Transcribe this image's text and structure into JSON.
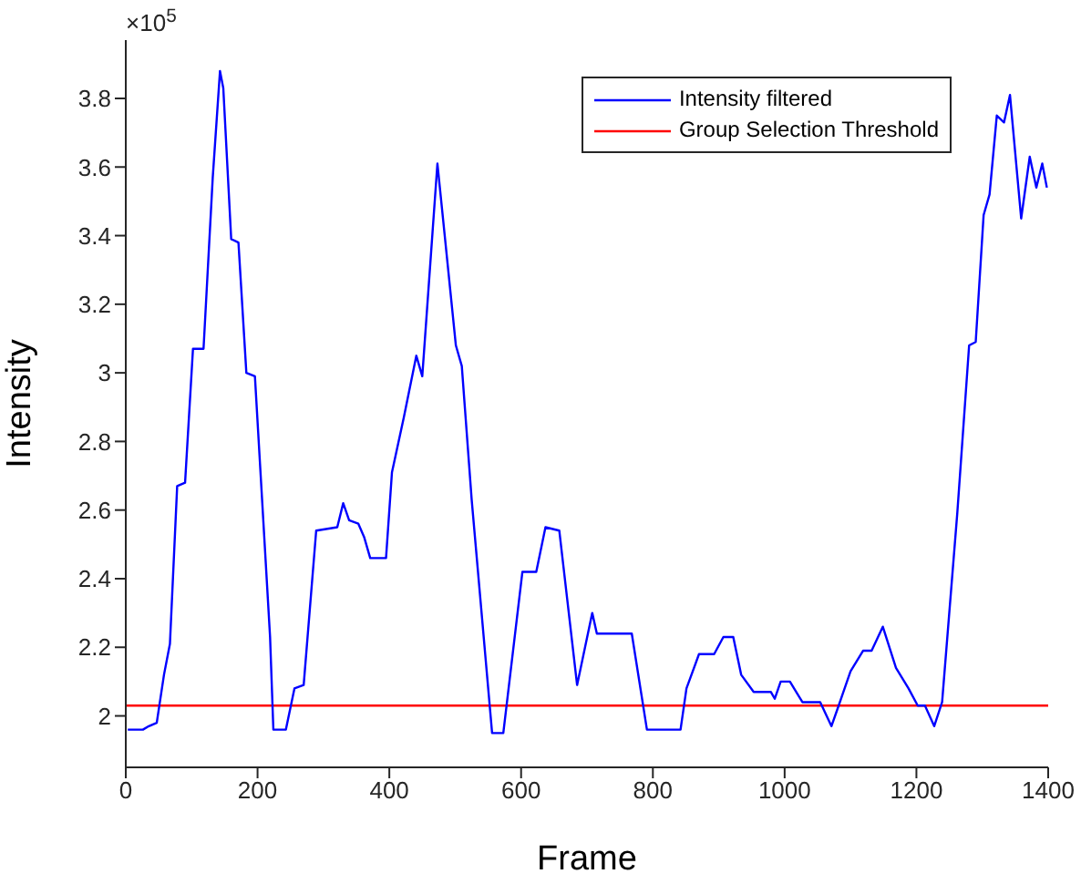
{
  "chart_data": {
    "type": "line",
    "xlabel": "Frame",
    "ylabel": "Intensity",
    "annotations": [
      "×10$^{5}$"
    ],
    "xlim": [
      0,
      1400
    ],
    "xticks": [
      0,
      200,
      400,
      600,
      800,
      1000,
      1200,
      1400
    ],
    "ylim": [
      1.85,
      3.97
    ],
    "yticks": [
      2,
      2.2,
      2.4,
      2.6,
      2.8,
      3,
      3.2,
      3.4,
      3.6,
      3.8
    ],
    "grid": false,
    "legend": "top right",
    "marker": "none",
    "line_style": "solid",
    "series": [
      {
        "name": "Intensity filtered",
        "color": "#0000ff",
        "x": [
          3,
          26,
          35,
          47,
          58,
          67,
          78,
          90,
          102,
          118,
          132,
          143,
          148,
          160,
          171,
          183,
          196,
          219,
          224,
          243,
          256,
          270,
          289,
          321,
          330,
          339,
          353,
          362,
          371,
          395,
          404,
          422,
          441,
          450,
          473,
          501,
          510,
          525,
          556,
          573,
          602,
          623,
          637,
          658,
          685,
          708,
          715,
          768,
          791,
          842,
          851,
          870,
          893,
          907,
          922,
          934,
          953,
          979,
          985,
          994,
          1008,
          1027,
          1054,
          1071,
          1082,
          1100,
          1119,
          1132,
          1149,
          1169,
          1188,
          1202,
          1213,
          1227,
          1239,
          1262,
          1280,
          1290,
          1302,
          1311,
          1322,
          1333,
          1342,
          1359,
          1372,
          1382,
          1391,
          1398
        ],
        "values": [
          1.96,
          1.96,
          1.97,
          1.98,
          2.12,
          2.21,
          2.67,
          2.68,
          3.07,
          3.07,
          3.57,
          3.88,
          3.83,
          3.39,
          3.38,
          3.0,
          2.99,
          2.23,
          1.96,
          1.96,
          2.08,
          2.09,
          2.54,
          2.55,
          2.62,
          2.57,
          2.56,
          2.52,
          2.46,
          2.46,
          2.71,
          2.87,
          3.05,
          2.99,
          3.61,
          3.08,
          3.02,
          2.63,
          1.95,
          1.95,
          2.42,
          2.42,
          2.55,
          2.54,
          2.09,
          2.3,
          2.24,
          2.24,
          1.96,
          1.96,
          2.08,
          2.18,
          2.18,
          2.23,
          2.23,
          2.12,
          2.07,
          2.07,
          2.05,
          2.1,
          2.1,
          2.04,
          2.04,
          1.97,
          2.03,
          2.13,
          2.19,
          2.19,
          2.26,
          2.14,
          2.08,
          2.03,
          2.03,
          1.97,
          2.04,
          2.59,
          3.08,
          3.09,
          3.46,
          3.52,
          3.75,
          3.73,
          3.81,
          3.45,
          3.63,
          3.54,
          3.61,
          3.54
        ]
      }
    ],
    "ref_lines": [
      {
        "axis": "y",
        "value": 2.03,
        "label": "Group Selection Threshold",
        "color": "#ff0000"
      }
    ]
  }
}
